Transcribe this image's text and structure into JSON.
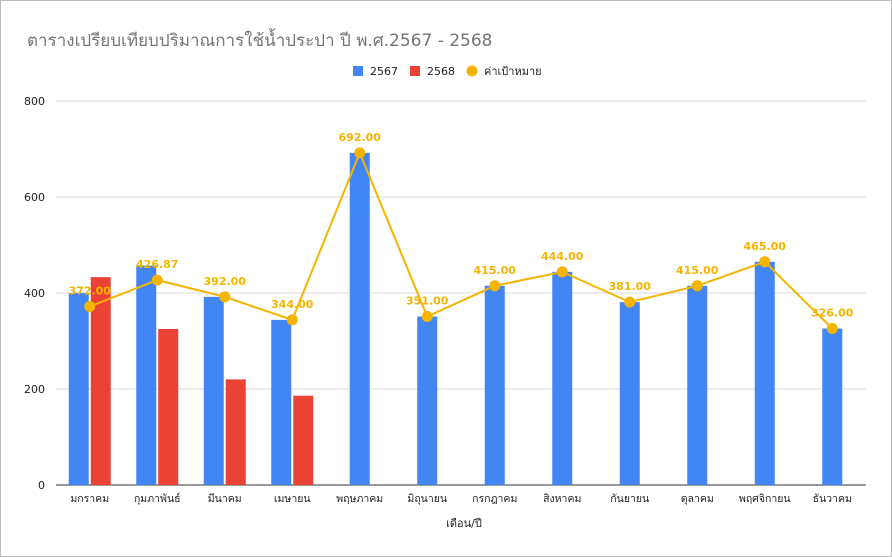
{
  "chart_data": {
    "type": "bar",
    "title": "ตารางเปรียบเทียบปริมาณการใช้น้ำประปา ปี พ.ศ.2567 - 2568",
    "xlabel": "เดือน/ปี",
    "ylabel": "",
    "ylim": [
      0,
      800
    ],
    "yticks": [
      0,
      200,
      400,
      600,
      800
    ],
    "categories": [
      "มกราคม",
      "กุมภาพันธ์",
      "มีนาคม",
      "เมษายน",
      "พฤษภาคม",
      "มิถุนายน",
      "กรกฎาคม",
      "สิงหาคม",
      "กันยายน",
      "ตุลาคม",
      "พฤศจิกายน",
      "ธันวาคม"
    ],
    "series": [
      {
        "name": "2567",
        "type": "bar",
        "color": "#4285f4",
        "values": [
          400,
          457,
          392,
          344,
          692,
          351,
          415,
          444,
          381,
          415,
          465,
          326
        ]
      },
      {
        "name": "2568",
        "type": "bar",
        "color": "#ea4335",
        "values": [
          433,
          325,
          220,
          186,
          null,
          null,
          null,
          null,
          null,
          null,
          null,
          null
        ]
      },
      {
        "name": "ค่าเป้าหมาย",
        "type": "line",
        "color": "#f4b400",
        "values": [
          372.0,
          426.87,
          392.0,
          344.0,
          692.0,
          351.0,
          415.0,
          444.0,
          381.0,
          415.0,
          465.0,
          326.0
        ],
        "labels": [
          "372.00",
          "426.87",
          "392.00",
          "344.00",
          "692.00",
          "351.00",
          "415.00",
          "444.00",
          "381.00",
          "415.00",
          "465.00",
          "326.00"
        ]
      }
    ],
    "legend_position": "top",
    "grid": true
  }
}
